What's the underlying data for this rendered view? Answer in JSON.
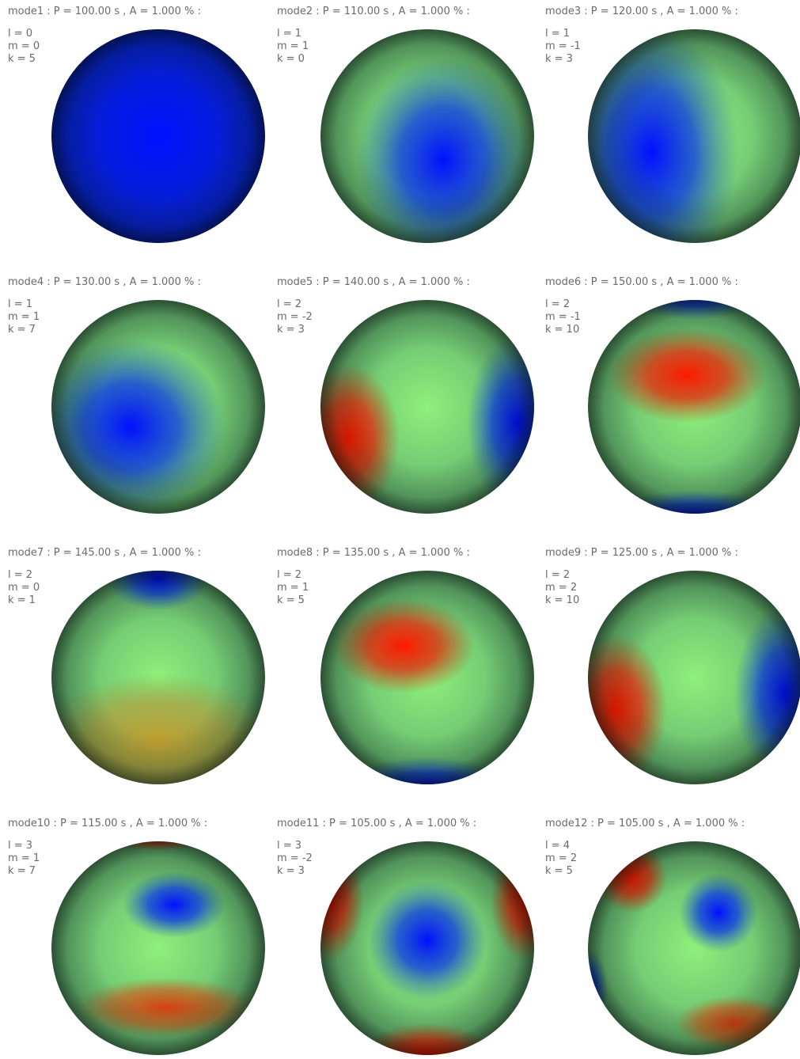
{
  "panels": [
    {
      "title": "mode1 : P = 100.00 s , A = 1.000 % :",
      "l": "l = 0",
      "m": "m = 0",
      "k": "k = 5"
    },
    {
      "title": "mode2 : P = 110.00 s , A = 1.000 % :",
      "l": "l = 1",
      "m": "m = 1",
      "k": "k = 0"
    },
    {
      "title": "mode3 : P = 120.00 s , A = 1.000 % :",
      "l": "l = 1",
      "m": "m = -1",
      "k": "k = 3"
    },
    {
      "title": "mode4 : P = 130.00 s , A = 1.000 % :",
      "l": "l = 1",
      "m": "m = 1",
      "k": "k = 7"
    },
    {
      "title": "mode5 : P = 140.00 s , A = 1.000 % :",
      "l": "l = 2",
      "m": "m = -2",
      "k": "k = 3"
    },
    {
      "title": "mode6 : P = 150.00 s , A = 1.000 % :",
      "l": "l = 2",
      "m": "m = -1",
      "k": "k = 10"
    },
    {
      "title": "mode7 : P = 145.00 s , A = 1.000 % :",
      "l": "l = 2",
      "m": "m = 0",
      "k": "k = 1"
    },
    {
      "title": "mode8 : P = 135.00 s , A = 1.000 % :",
      "l": "l = 2",
      "m": "m = 1",
      "k": "k = 5"
    },
    {
      "title": "mode9 : P = 125.00 s , A = 1.000 % :",
      "l": "l = 2",
      "m": "m = 2",
      "k": "k = 10"
    },
    {
      "title": "mode10 : P = 115.00 s , A = 1.000 % :",
      "l": "l = 3",
      "m": "m = 1",
      "k": "k = 7"
    },
    {
      "title": "mode11 : P = 105.00 s , A = 1.000 % :",
      "l": "l = 3",
      "m": "m = -2",
      "k": "k = 3"
    },
    {
      "title": "mode12 : P = 105.00 s , A = 1.000 % :",
      "l": "l = 4",
      "m": "m = 2",
      "k": "k = 5"
    }
  ]
}
